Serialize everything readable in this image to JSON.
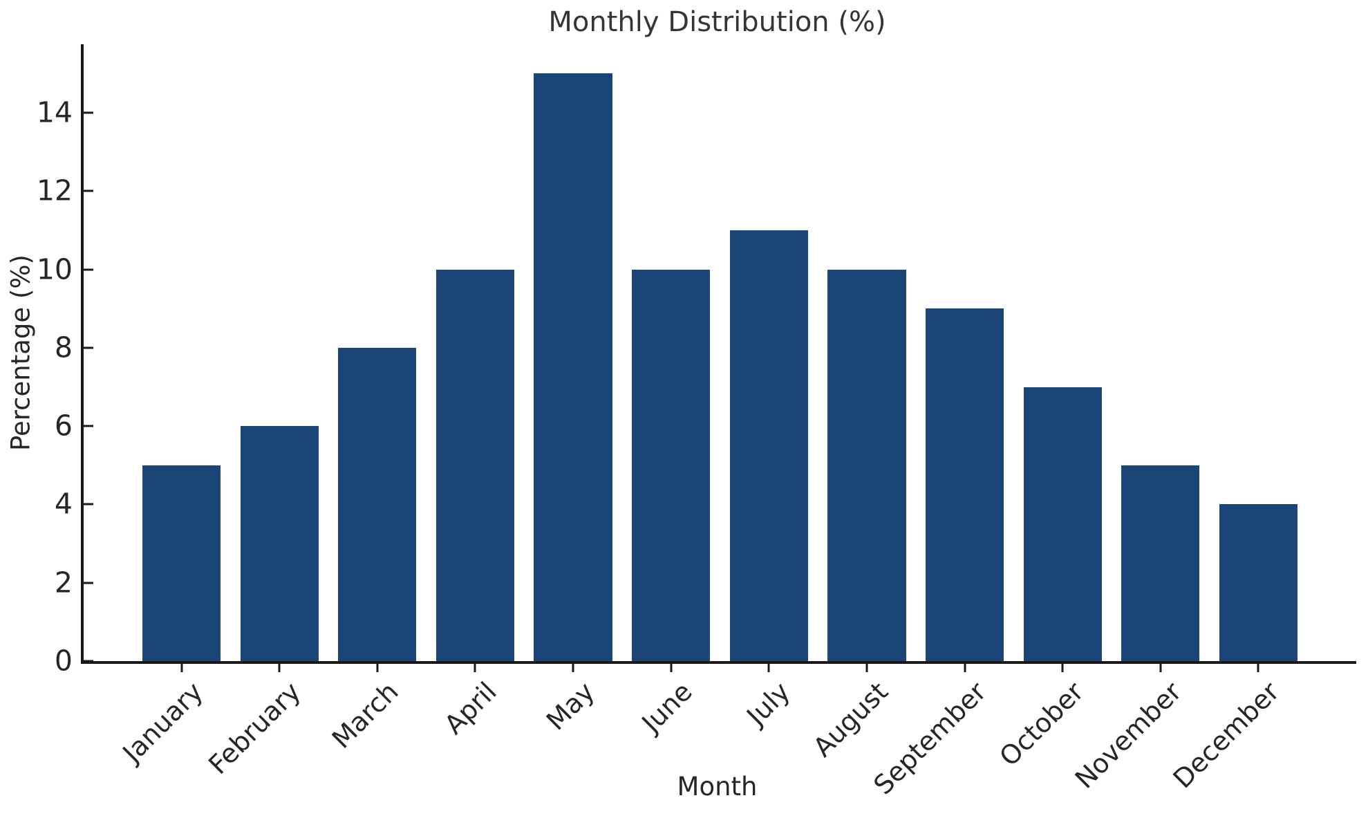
{
  "chart_data": {
    "type": "bar",
    "title": "Monthly Distribution (%)",
    "xlabel": "Month",
    "ylabel": "Percentage (%)",
    "categories": [
      "January",
      "February",
      "March",
      "April",
      "May",
      "June",
      "July",
      "August",
      "September",
      "October",
      "November",
      "December"
    ],
    "values": [
      5,
      6,
      8,
      10,
      15,
      10,
      11,
      10,
      9,
      7,
      5,
      4
    ],
    "ylim": [
      0,
      15.75
    ],
    "yticks": [
      0,
      2,
      4,
      6,
      8,
      10,
      12,
      14
    ],
    "bar_color": "#1c4577",
    "axis_color": "#1a1a1a",
    "background_color": "#ffffff",
    "grid": false,
    "legend": false,
    "bar_width_fraction": 0.8,
    "xtick_rotation_deg": 45
  }
}
